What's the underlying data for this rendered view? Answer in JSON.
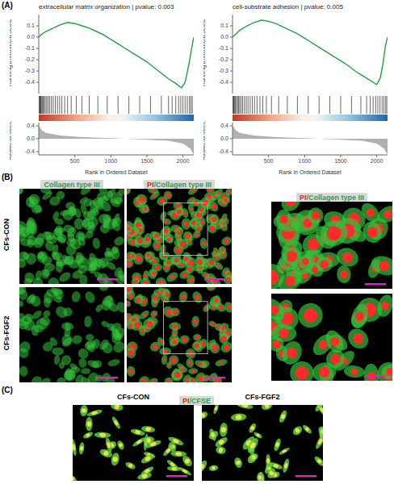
{
  "panel_labels": [
    "(A)",
    "(B)",
    "(C)"
  ],
  "chart_data": [
    {
      "type": "line",
      "title": "extracellular matrix organization | pvalue: 0.003",
      "y_label": "Running Enrichment Score",
      "x_label": "Rank in Ordered Dataset",
      "metric_label": "Ranked list metric",
      "color": "#22a043",
      "x": [
        0,
        50,
        100,
        200,
        300,
        400,
        500,
        600,
        700,
        800,
        900,
        1000,
        1100,
        1200,
        1300,
        1400,
        1500,
        1600,
        1700,
        1800,
        1900,
        1980,
        2030,
        2080,
        2120,
        2150
      ],
      "values": [
        0,
        0.03,
        0.05,
        0.08,
        0.11,
        0.13,
        0.12,
        0.1,
        0.08,
        0.05,
        0.02,
        -0.02,
        -0.06,
        -0.1,
        -0.14,
        -0.18,
        -0.22,
        -0.27,
        -0.32,
        -0.37,
        -0.41,
        -0.45,
        -0.4,
        -0.25,
        -0.1,
        0
      ],
      "xlim": [
        0,
        2150
      ],
      "xticks": [
        500,
        1000,
        1500,
        2000
      ],
      "ylim": [
        -0.5,
        0.2
      ],
      "yticks": [
        -0.4,
        -0.3,
        -0.2,
        -0.1,
        {
          "value": 0,
          "label": "0.0"
        },
        0.1
      ],
      "hits": [
        5,
        12,
        20,
        28,
        35,
        48,
        60,
        75,
        90,
        110,
        130,
        150,
        175,
        200,
        230,
        260,
        290,
        320,
        360,
        400,
        450,
        520,
        600,
        700,
        820,
        950,
        1100,
        1250,
        1400,
        1550,
        1700,
        1800,
        1850,
        1900,
        1940,
        1970,
        2000,
        2030,
        2060,
        2090,
        2110,
        2130
      ],
      "metric": {
        "x": [
          0,
          50,
          100,
          300,
          600,
          1000,
          1400,
          1800,
          2000,
          2100,
          2150
        ],
        "values": [
          0.4,
          0.25,
          0.18,
          0.1,
          0.05,
          0.02,
          -0.02,
          -0.06,
          -0.15,
          -0.3,
          -0.5
        ],
        "ylim": [
          -0.5,
          0.5
        ],
        "yticks": [
          -0.4,
          {
            "value": 0,
            "label": "0.0"
          },
          0.4
        ]
      }
    },
    {
      "type": "line",
      "title": "cell-substrate adhesion | pvalue: 0.005",
      "y_label": "Running Enrichment Score",
      "x_label": "Rank in Ordered Dataset",
      "metric_label": "Ranked list metric",
      "color": "#22a043",
      "x": [
        0,
        50,
        100,
        200,
        300,
        400,
        500,
        600,
        700,
        800,
        900,
        1000,
        1100,
        1200,
        1300,
        1400,
        1500,
        1600,
        1700,
        1800,
        1900,
        2000,
        2050,
        2090,
        2120,
        2150
      ],
      "values": [
        0,
        0.03,
        0.06,
        0.1,
        0.13,
        0.15,
        0.14,
        0.12,
        0.09,
        0.06,
        0.03,
        -0.01,
        -0.05,
        -0.09,
        -0.13,
        -0.17,
        -0.21,
        -0.25,
        -0.3,
        -0.34,
        -0.38,
        -0.42,
        -0.36,
        -0.22,
        -0.08,
        0
      ],
      "xlim": [
        0,
        2150
      ],
      "xticks": [
        500,
        1000,
        1500,
        2000
      ],
      "ylim": [
        -0.5,
        0.2
      ],
      "yticks": [
        -0.4,
        -0.3,
        -0.2,
        -0.1,
        {
          "value": 0,
          "label": "0.0"
        },
        0.1
      ],
      "hits": [
        3,
        10,
        18,
        26,
        40,
        55,
        70,
        85,
        100,
        120,
        140,
        165,
        190,
        215,
        245,
        275,
        305,
        340,
        380,
        420,
        470,
        540,
        640,
        760,
        900,
        1050,
        1200,
        1350,
        1500,
        1650,
        1780,
        1860,
        1910,
        1950,
        1985,
        2015,
        2045,
        2075,
        2100,
        2125,
        2140
      ],
      "metric": {
        "x": [
          0,
          50,
          100,
          300,
          600,
          1000,
          1400,
          1800,
          2000,
          2100,
          2150
        ],
        "values": [
          0.4,
          0.25,
          0.18,
          0.1,
          0.05,
          0.02,
          -0.02,
          -0.06,
          -0.15,
          -0.3,
          -0.5
        ],
        "ylim": [
          -0.5,
          0.5
        ],
        "yticks": [
          -0.4,
          {
            "value": 0,
            "label": "0.0"
          },
          0.4
        ]
      }
    }
  ],
  "panel_b": {
    "column_headers": [
      [
        {
          "text": "Collagen type III",
          "color": "#2f9e44"
        }
      ],
      [
        {
          "text": "PI",
          "color": "#d62828"
        },
        {
          "text": "/Collagen type III",
          "color": "#2f9e44"
        }
      ],
      [
        {
          "text": "PI",
          "color": "#d62828"
        },
        {
          "text": "/Collagen type III",
          "color": "#2f9e44"
        }
      ]
    ],
    "rows": [
      "CFs-CON",
      "CFs-FGF2"
    ]
  },
  "panel_c": {
    "headers": [
      "CFs-CON",
      "CFs-FGF2"
    ],
    "stain": [
      {
        "text": "PI",
        "color": "#d62828"
      },
      {
        "text": "/CFSE",
        "color": "#2f9e44"
      }
    ]
  }
}
